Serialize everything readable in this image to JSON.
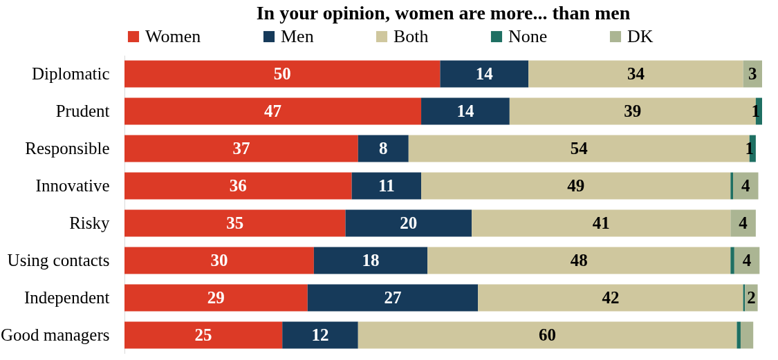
{
  "chart_data": {
    "type": "bar",
    "orientation": "horizontal",
    "stacked": true,
    "title": "In your opinion,  women are more... than men",
    "categories": [
      "Diplomatic",
      "Prudent",
      "Responsible",
      "Innovative",
      "Risky",
      "Using contacts",
      "Independent",
      "Good managers"
    ],
    "series": [
      {
        "name": "Women",
        "color": "#dc3a26",
        "values": [
          50,
          47,
          37,
          36,
          35,
          30,
          29,
          25
        ],
        "value_labels": [
          "50",
          "47",
          "37",
          "36",
          "35",
          "30",
          "29",
          "25"
        ]
      },
      {
        "name": "Men",
        "color": "#163a5a",
        "values": [
          14,
          14,
          8,
          11,
          20,
          18,
          27,
          12
        ],
        "value_labels": [
          "14",
          "14",
          "8",
          "11",
          "20",
          "18",
          "27",
          "12"
        ]
      },
      {
        "name": "Both",
        "color": "#cfc79e",
        "values": [
          34,
          39,
          54,
          49,
          41,
          48,
          42,
          60
        ],
        "value_labels": [
          "34",
          "39",
          "54",
          "49",
          "41",
          "48",
          "42",
          "60"
        ]
      },
      {
        "name": "None",
        "color": "#1e6f62",
        "values": [
          0,
          1,
          1,
          0.4,
          0,
          0.6,
          0.3,
          0.6
        ],
        "value_labels": [
          null,
          "1",
          "1",
          null,
          null,
          null,
          null,
          null
        ]
      },
      {
        "name": "DK",
        "color": "#abb593",
        "values": [
          3,
          0,
          0,
          4,
          4,
          4,
          2,
          2
        ],
        "value_labels": [
          "3",
          null,
          null,
          "4",
          "4",
          "4",
          "2",
          null
        ]
      }
    ],
    "xlim": [
      0,
      101
    ],
    "legend": "top"
  }
}
